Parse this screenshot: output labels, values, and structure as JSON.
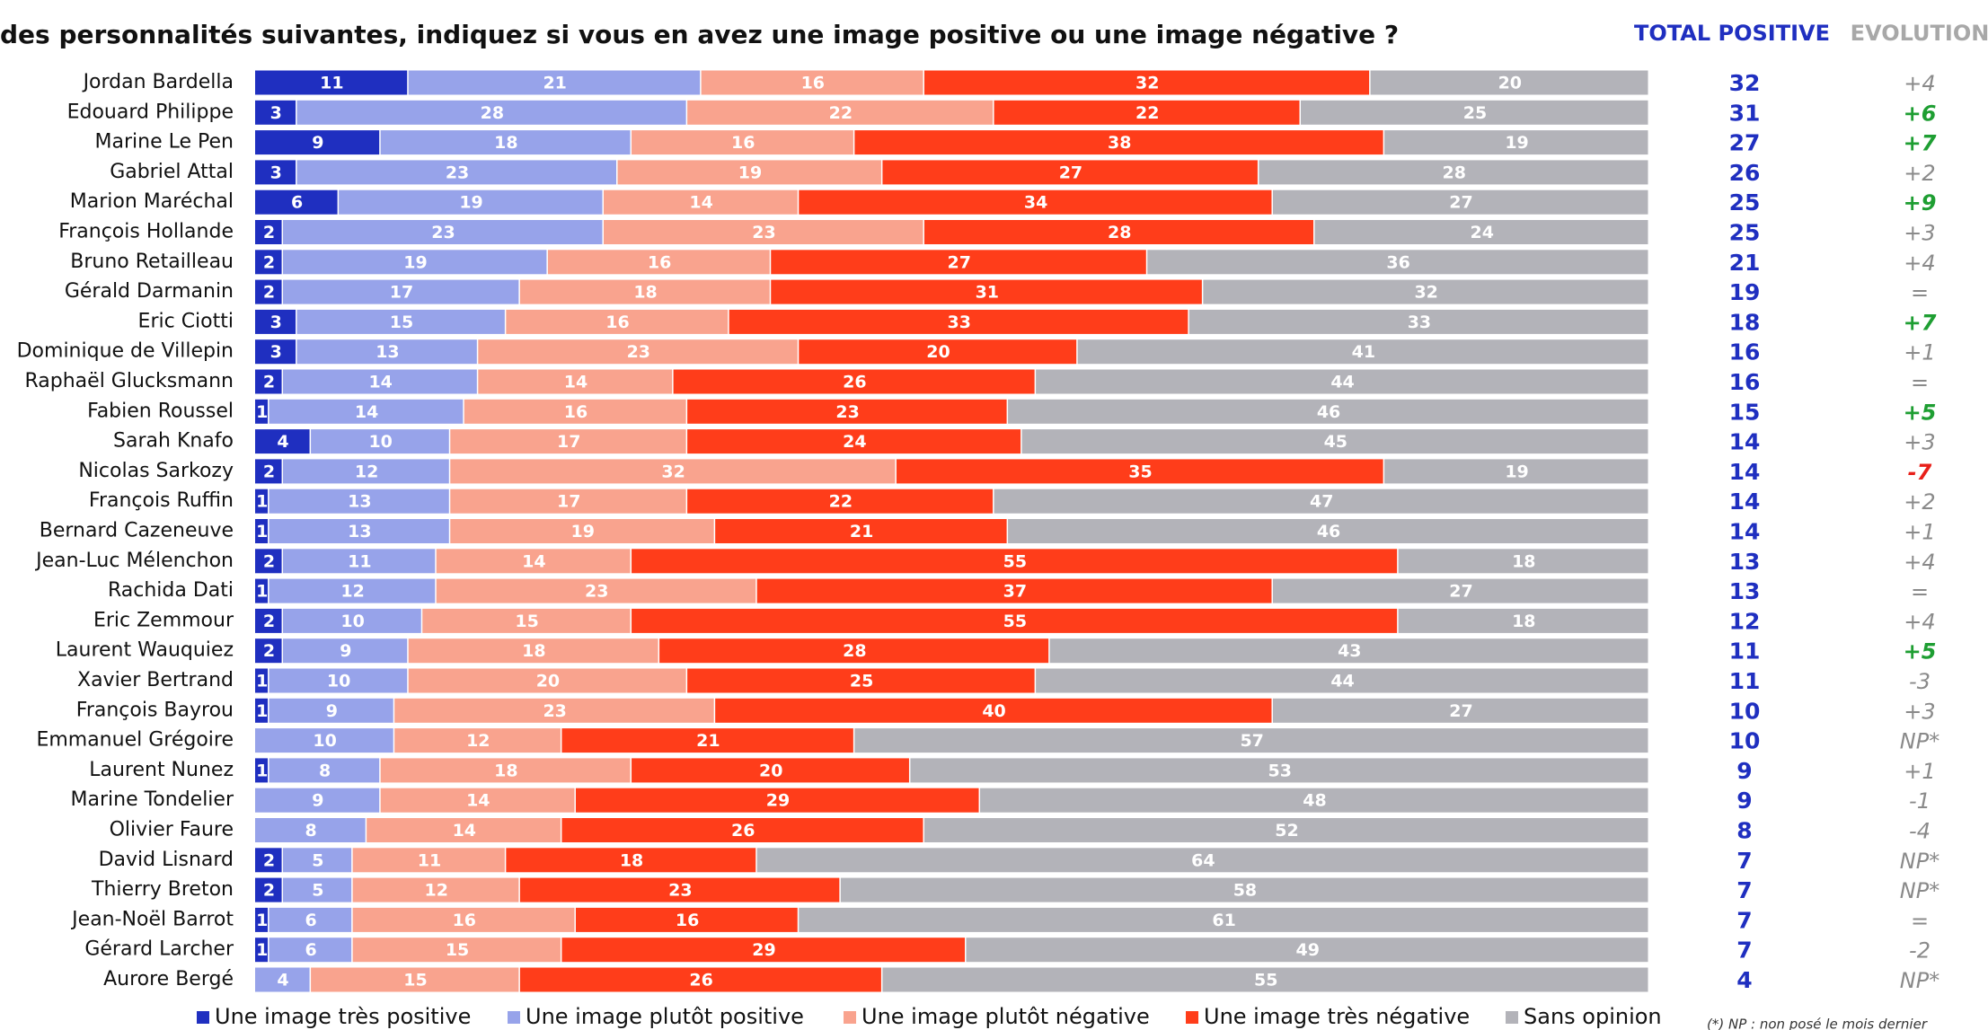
{
  "chart_data": {
    "type": "stacked_bar_horizontal",
    "title": "des personnalités suivantes, indiquez si vous en avez une image positive ou une image négative ?",
    "total_header": "TOTAL POSITIVE",
    "evolution_header": "EVOLUTION",
    "footnote": "(*) NP : non posé le mois dernier",
    "xlim": [
      0,
      100
    ],
    "categories": [
      "Jordan Bardella",
      "Edouard Philippe",
      "Marine Le Pen",
      "Gabriel Attal",
      "Marion Maréchal",
      "François Hollande",
      "Bruno Retailleau",
      "Gérald Darmanin",
      "Eric Ciotti",
      "Dominique de Villepin",
      "Raphaël Glucksmann",
      "Fabien Roussel",
      "Sarah Knafo",
      "Nicolas Sarkozy",
      "François Ruffin",
      "Bernard Cazeneuve",
      "Jean-Luc Mélenchon",
      "Rachida Dati",
      "Eric Zemmour",
      "Laurent Wauquiez",
      "Xavier Bertrand",
      "François Bayrou",
      "Emmanuel Grégoire",
      "Laurent Nunez",
      "Marine Tondelier",
      "Olivier Faure",
      "David Lisnard",
      "Thierry Breton",
      "Jean-Noël Barrot",
      "Gérard Larcher",
      "Aurore Bergé"
    ],
    "series": [
      {
        "name": "Une image très positive",
        "color": "#1f2fc0",
        "values": [
          11,
          3,
          9,
          3,
          6,
          2,
          2,
          2,
          3,
          3,
          2,
          1,
          4,
          2,
          1,
          1,
          2,
          1,
          2,
          2,
          1,
          1,
          null,
          1,
          null,
          null,
          2,
          2,
          1,
          1,
          null
        ]
      },
      {
        "name": "Une image plutôt positive",
        "color": "#97a3ea",
        "values": [
          21,
          28,
          18,
          23,
          19,
          23,
          19,
          17,
          15,
          13,
          14,
          14,
          10,
          12,
          13,
          13,
          11,
          12,
          10,
          9,
          10,
          9,
          10,
          8,
          9,
          8,
          5,
          5,
          6,
          6,
          4
        ]
      },
      {
        "name": "Une image plutôt négative",
        "color": "#f9a38e",
        "values": [
          16,
          22,
          16,
          19,
          14,
          23,
          16,
          18,
          16,
          23,
          14,
          16,
          17,
          32,
          17,
          19,
          14,
          23,
          15,
          18,
          20,
          23,
          12,
          18,
          14,
          14,
          11,
          12,
          16,
          15,
          15
        ]
      },
      {
        "name": "Une image très négative",
        "color": "#ff3d1a",
        "values": [
          32,
          22,
          38,
          27,
          34,
          28,
          27,
          31,
          33,
          20,
          26,
          23,
          24,
          35,
          22,
          21,
          55,
          37,
          55,
          28,
          25,
          40,
          21,
          20,
          29,
          26,
          18,
          23,
          16,
          29,
          26
        ]
      },
      {
        "name": "Sans opinion",
        "color": "#b3b3b9",
        "values": [
          20,
          25,
          19,
          28,
          27,
          24,
          36,
          32,
          33,
          41,
          44,
          46,
          45,
          19,
          47,
          46,
          18,
          27,
          18,
          43,
          44,
          27,
          57,
          53,
          48,
          52,
          64,
          58,
          61,
          49,
          55
        ]
      }
    ],
    "total_positive": [
      32,
      31,
      27,
      26,
      25,
      25,
      21,
      19,
      18,
      16,
      16,
      15,
      14,
      14,
      14,
      14,
      13,
      13,
      12,
      11,
      11,
      10,
      10,
      9,
      9,
      8,
      7,
      7,
      7,
      7,
      4
    ],
    "total_color": "#1f2fc0",
    "evolution": [
      "+4",
      "+6",
      "+7",
      "+2",
      "+9",
      "+3",
      "+4",
      "=",
      "+7",
      "+1",
      "=",
      "+5",
      "+3",
      "-7",
      "+2",
      "+1",
      "+4",
      "=",
      "+4",
      "+5",
      "-3",
      "+3",
      "NP*",
      "+1",
      "-1",
      "-4",
      "NP*",
      "NP*",
      "=",
      "-2",
      "NP*"
    ],
    "evolution_colors": [
      "#8a8a8a",
      "#1e9e32",
      "#1e9e32",
      "#8a8a8a",
      "#1e9e32",
      "#8a8a8a",
      "#8a8a8a",
      "#8a8a8a",
      "#1e9e32",
      "#8a8a8a",
      "#8a8a8a",
      "#1e9e32",
      "#8a8a8a",
      "#e8201a",
      "#8a8a8a",
      "#8a8a8a",
      "#8a8a8a",
      "#8a8a8a",
      "#8a8a8a",
      "#1e9e32",
      "#8a8a8a",
      "#8a8a8a",
      "#8a8a8a",
      "#8a8a8a",
      "#8a8a8a",
      "#8a8a8a",
      "#8a8a8a",
      "#8a8a8a",
      "#8a8a8a",
      "#8a8a8a",
      "#8a8a8a"
    ]
  }
}
